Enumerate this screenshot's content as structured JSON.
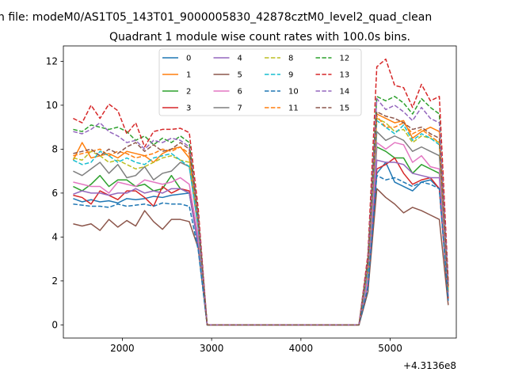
{
  "chart_data": {
    "type": "line",
    "suptitle": "n file: modeM0/AS1T05_143T01_9000005830_42878cztM0_level2_quad_clean",
    "title": "Quadrant 1 module wise count rates with 100.0s bins.",
    "xlabel": "",
    "ylabel": "",
    "x_offset_label": "+4.3136e8",
    "xlim": [
      1340,
      5740
    ],
    "ylim": [
      -0.6,
      12.7
    ],
    "xticks": [
      2000,
      3000,
      4000,
      5000
    ],
    "xtick_labels": [
      "2000",
      "3000",
      "4000",
      "5000"
    ],
    "yticks": [
      0,
      2,
      4,
      6,
      8,
      10,
      12
    ],
    "ytick_labels": [
      "0",
      "2",
      "4",
      "6",
      "8",
      "10",
      "12"
    ],
    "legend_position": "upper center",
    "grid": false,
    "x": [
      1450,
      1550,
      1650,
      1750,
      1850,
      1950,
      2050,
      2150,
      2250,
      2350,
      2450,
      2550,
      2650,
      2750,
      2850,
      2950,
      3050,
      3150,
      3250,
      3350,
      3450,
      3550,
      3650,
      3750,
      3850,
      3950,
      4050,
      4150,
      4250,
      4350,
      4450,
      4550,
      4650,
      4750,
      4850,
      4950,
      5050,
      5150,
      5250,
      5350,
      5450,
      5550,
      5650
    ],
    "series": [
      {
        "name": "0",
        "color": "#1f77b4",
        "style": "solid",
        "values": [
          5.75,
          5.6,
          5.7,
          5.6,
          5.65,
          5.55,
          5.75,
          5.7,
          5.75,
          5.85,
          5.8,
          5.9,
          5.95,
          6.0,
          3.6,
          0,
          0,
          0,
          0,
          0,
          0,
          0,
          0,
          0,
          0,
          0,
          0,
          0,
          0,
          0,
          0,
          0,
          0,
          1.5,
          6.9,
          7.4,
          6.5,
          6.3,
          6.1,
          6.5,
          6.6,
          6.2,
          1.2
        ]
      },
      {
        "name": "1",
        "color": "#ff7f0e",
        "style": "solid",
        "values": [
          7.5,
          8.3,
          7.6,
          7.7,
          7.8,
          7.6,
          7.9,
          7.8,
          7.7,
          7.4,
          7.8,
          8.0,
          8.1,
          7.6,
          4.7,
          0,
          0,
          0,
          0,
          0,
          0,
          0,
          0,
          0,
          0,
          0,
          0,
          0,
          0,
          0,
          0,
          0,
          0,
          2.8,
          9.6,
          9.4,
          9.2,
          9.3,
          8.5,
          8.8,
          9.0,
          8.8,
          1.6
        ]
      },
      {
        "name": "2",
        "color": "#2ca02c",
        "style": "solid",
        "values": [
          6.3,
          6.1,
          6.4,
          6.8,
          6.3,
          6.6,
          6.6,
          6.3,
          6.4,
          6.1,
          6.2,
          6.8,
          6.2,
          6.0,
          3.8,
          0,
          0,
          0,
          0,
          0,
          0,
          0,
          0,
          0,
          0,
          0,
          0,
          0,
          0,
          0,
          0,
          0,
          0,
          2.0,
          8.1,
          7.9,
          7.6,
          7.6,
          6.9,
          7.3,
          7.1,
          6.9,
          1.3
        ]
      },
      {
        "name": "3",
        "color": "#d62728",
        "style": "solid",
        "values": [
          5.9,
          5.8,
          5.5,
          6.1,
          5.9,
          5.7,
          6.1,
          6.1,
          5.8,
          5.4,
          6.3,
          6.0,
          6.2,
          6.1,
          3.7,
          0,
          0,
          0,
          0,
          0,
          0,
          0,
          0,
          0,
          0,
          0,
          0,
          0,
          0,
          0,
          0,
          0,
          0,
          1.9,
          7.1,
          7.3,
          7.6,
          6.9,
          6.4,
          6.6,
          6.7,
          6.2,
          1.2
        ]
      },
      {
        "name": "4",
        "color": "#9467bd",
        "style": "solid",
        "values": [
          5.95,
          6.1,
          6.0,
          6.0,
          5.9,
          6.0,
          6.0,
          6.2,
          6.0,
          6.1,
          6.0,
          6.2,
          6.2,
          6.0,
          3.7,
          0,
          0,
          0,
          0,
          0,
          0,
          0,
          0,
          0,
          0,
          0,
          0,
          0,
          0,
          0,
          0,
          0,
          0,
          1.9,
          7.5,
          7.4,
          7.4,
          7.3,
          6.9,
          6.8,
          6.7,
          6.7,
          1.3
        ]
      },
      {
        "name": "5",
        "color": "#8c564b",
        "style": "solid",
        "values": [
          4.6,
          4.5,
          4.6,
          4.3,
          4.8,
          4.45,
          4.75,
          4.5,
          5.2,
          4.7,
          4.35,
          4.8,
          4.8,
          4.7,
          3.5,
          0,
          0,
          0,
          0,
          0,
          0,
          0,
          0,
          0,
          0,
          0,
          0,
          0,
          0,
          0,
          0,
          0,
          0,
          1.5,
          6.2,
          5.8,
          5.5,
          5.1,
          5.35,
          5.2,
          5.0,
          4.8,
          0.9
        ]
      },
      {
        "name": "6",
        "color": "#e377c2",
        "style": "solid",
        "values": [
          6.5,
          6.4,
          6.3,
          6.3,
          6.0,
          6.5,
          6.4,
          6.3,
          6.6,
          6.5,
          6.4,
          6.5,
          6.7,
          6.4,
          4.0,
          0,
          0,
          0,
          0,
          0,
          0,
          0,
          0,
          0,
          0,
          0,
          0,
          0,
          0,
          0,
          0,
          0,
          0,
          2.1,
          8.3,
          8.0,
          8.3,
          8.2,
          7.4,
          7.7,
          7.2,
          7.1,
          1.4
        ]
      },
      {
        "name": "7",
        "color": "#7f7f7f",
        "style": "solid",
        "values": [
          7.0,
          6.8,
          7.1,
          7.4,
          6.9,
          7.3,
          6.7,
          6.8,
          7.2,
          6.6,
          6.9,
          7.0,
          7.4,
          7.2,
          4.4,
          0,
          0,
          0,
          0,
          0,
          0,
          0,
          0,
          0,
          0,
          0,
          0,
          0,
          0,
          0,
          0,
          0,
          0,
          2.4,
          8.8,
          8.4,
          8.6,
          8.4,
          7.9,
          8.1,
          7.9,
          7.7,
          1.5
        ]
      },
      {
        "name": "8",
        "color": "#bcbd22",
        "style": "dashed",
        "values": [
          7.6,
          7.5,
          7.9,
          7.7,
          7.4,
          7.5,
          7.3,
          7.1,
          7.2,
          7.4,
          7.6,
          7.7,
          7.5,
          7.4,
          4.6,
          0,
          0,
          0,
          0,
          0,
          0,
          0,
          0,
          0,
          0,
          0,
          0,
          0,
          0,
          0,
          0,
          0,
          0,
          2.6,
          9.4,
          9.2,
          8.8,
          8.9,
          8.3,
          8.6,
          8.5,
          8.3,
          1.6
        ]
      },
      {
        "name": "9",
        "color": "#17becf",
        "style": "dashed",
        "values": [
          7.5,
          7.3,
          7.4,
          7.9,
          7.7,
          7.4,
          7.6,
          7.4,
          7.3,
          7.6,
          7.7,
          7.8,
          7.5,
          7.2,
          4.5,
          0,
          0,
          0,
          0,
          0,
          0,
          0,
          0,
          0,
          0,
          0,
          0,
          0,
          0,
          0,
          0,
          0,
          0,
          2.5,
          9.3,
          9.0,
          8.7,
          9.1,
          8.4,
          8.7,
          8.5,
          8.2,
          1.6
        ]
      },
      {
        "name": "10",
        "color": "#1f77b4",
        "style": "dashed",
        "values": [
          5.5,
          5.45,
          5.4,
          5.4,
          5.35,
          5.5,
          5.4,
          5.45,
          5.5,
          5.4,
          5.55,
          5.5,
          5.5,
          5.4,
          3.4,
          0,
          0,
          0,
          0,
          0,
          0,
          0,
          0,
          0,
          0,
          0,
          0,
          0,
          0,
          0,
          0,
          0,
          0,
          1.7,
          6.8,
          6.6,
          6.7,
          6.5,
          6.3,
          6.5,
          6.4,
          6.2,
          1.1
        ]
      },
      {
        "name": "11",
        "color": "#ff7f0e",
        "style": "dashed",
        "values": [
          7.7,
          7.8,
          7.9,
          8.0,
          7.7,
          7.9,
          7.8,
          7.6,
          7.7,
          7.8,
          8.0,
          7.9,
          8.1,
          7.8,
          4.8,
          0,
          0,
          0,
          0,
          0,
          0,
          0,
          0,
          0,
          0,
          0,
          0,
          0,
          0,
          0,
          0,
          0,
          0,
          2.7,
          9.5,
          9.0,
          9.0,
          9.2,
          8.7,
          8.9,
          8.6,
          8.3,
          1.7
        ]
      },
      {
        "name": "12",
        "color": "#2ca02c",
        "style": "dashed",
        "values": [
          8.9,
          8.8,
          9.1,
          9.0,
          8.9,
          9.0,
          8.8,
          8.4,
          8.6,
          8.2,
          8.5,
          8.3,
          8.6,
          8.3,
          5.0,
          0,
          0,
          0,
          0,
          0,
          0,
          0,
          0,
          0,
          0,
          0,
          0,
          0,
          0,
          0,
          0,
          0,
          0,
          3.0,
          10.4,
          10.2,
          10.4,
          10.1,
          9.6,
          10.3,
          9.9,
          9.6,
          1.8
        ]
      },
      {
        "name": "13",
        "color": "#d62728",
        "style": "dashed",
        "values": [
          9.4,
          9.2,
          10.0,
          9.4,
          10.05,
          9.75,
          8.7,
          9.2,
          8.1,
          8.8,
          8.9,
          8.9,
          8.95,
          8.75,
          5.3,
          0,
          0,
          0,
          0,
          0,
          0,
          0,
          0,
          0,
          0,
          0,
          0,
          0,
          0,
          0,
          0,
          0,
          0,
          3.2,
          11.75,
          12.1,
          10.9,
          10.8,
          9.9,
          10.95,
          10.2,
          10.4,
          2.0
        ]
      },
      {
        "name": "14",
        "color": "#9467bd",
        "style": "dashed",
        "values": [
          8.8,
          8.7,
          8.9,
          9.2,
          8.8,
          8.6,
          8.3,
          8.4,
          8.0,
          8.4,
          8.3,
          8.5,
          8.4,
          8.1,
          4.9,
          0,
          0,
          0,
          0,
          0,
          0,
          0,
          0,
          0,
          0,
          0,
          0,
          0,
          0,
          0,
          0,
          0,
          0,
          2.9,
          10.3,
          9.8,
          10.0,
          9.7,
          9.3,
          9.9,
          9.4,
          9.2,
          1.8
        ]
      },
      {
        "name": "15",
        "color": "#8c564b",
        "style": "dashed",
        "values": [
          7.8,
          7.9,
          8.0,
          7.7,
          8.0,
          7.8,
          8.1,
          8.3,
          7.9,
          8.2,
          7.9,
          8.0,
          8.3,
          8.0,
          4.8,
          0,
          0,
          0,
          0,
          0,
          0,
          0,
          0,
          0,
          0,
          0,
          0,
          0,
          0,
          0,
          0,
          0,
          0,
          2.8,
          9.7,
          9.5,
          9.4,
          9.2,
          8.9,
          9.0,
          8.7,
          8.5,
          1.7
        ]
      }
    ]
  }
}
